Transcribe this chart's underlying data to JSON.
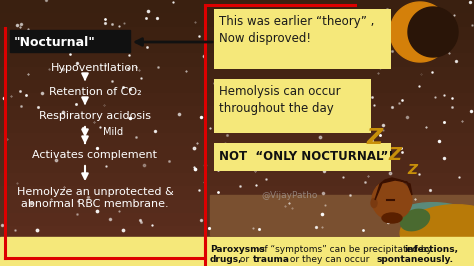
{
  "bg_color": "#3a2010",
  "left_box_label": "\"Nocturnal\"",
  "left_box_bg": "#111111",
  "left_box_text_color": "#ffffff",
  "flow_items": [
    "Hypoventilation",
    "Retention of CO₂",
    "Respiratory acidosis",
    "Mild",
    "Activates complement",
    "Hemolyze an unprotected &\nabnormal RBC membrane."
  ],
  "flow_text_color": "#ffffff",
  "arrow_color": "#ffffff",
  "red_box_color": "#dd0000",
  "theory_box_bg": "#f5e87a",
  "theory_box_text": "This was earlier “theory” ,\nNow disproved!",
  "theory_box_text_color": "#1a1a1a",
  "hemolysis_box_bg": "#f5e87a",
  "hemolysis_box_text": "Hemolysis can occur\nthroughout the day",
  "hemolysis_box_text_color": "#1a1a1a",
  "not_nocturnal_bg": "#f5e87a",
  "not_nocturnal_text": "NOT  “ONLY NOCTURNAL”!",
  "not_nocturnal_color": "#111111",
  "watermark": "@VijayPatho",
  "watermark_color": "#bbbbbb",
  "bottom_box_bg": "#f5e87a",
  "bottom_text_color": "#111111",
  "zzz_color": "#c8900a",
  "moon_color": "#d4800a",
  "star_color": "#ffffff",
  "black_arrow_color": "#111111",
  "sleeping_body_color": "#c8860a",
  "sleeping_head_color": "#8B4513",
  "sleeping_hair_color": "#4a1500",
  "sleeping_beard_color": "#6a2500",
  "sleeping_pillow_color": "#4a7a6a",
  "sleeping_shirt_color": "#4a6a30"
}
